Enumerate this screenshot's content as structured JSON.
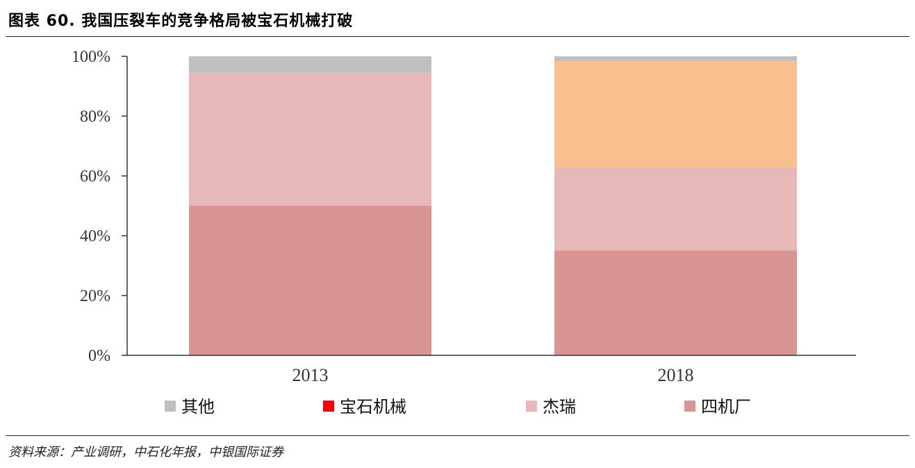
{
  "header": {
    "title": "图表 60. 我国压裂车的竞争格局被宝石机械打破"
  },
  "footer": {
    "source": "资料来源：产业调研，中石化年报，中银国际证券"
  },
  "chart_data": {
    "type": "bar",
    "stacked": true,
    "categories": [
      "2013",
      "2018"
    ],
    "y_ticks": [
      "0%",
      "20%",
      "40%",
      "60%",
      "80%",
      "100%"
    ],
    "ylim": [
      0,
      100
    ],
    "series": [
      {
        "name": "四机厂",
        "values": [
          50,
          35
        ],
        "color": "#d99494"
      },
      {
        "name": "杰瑞",
        "values": [
          44.5,
          28
        ],
        "color": "#e6b8b8"
      },
      {
        "name": "宝石机械",
        "values": [
          0,
          35.5
        ],
        "color": "#f9c08f",
        "legend_color": "#ff0000"
      },
      {
        "name": "其他",
        "values": [
          5.5,
          1.5
        ],
        "color": "#bfbfbf"
      }
    ],
    "legend_order": [
      "其他",
      "宝石机械",
      "杰瑞",
      "四机厂"
    ],
    "legend_position": "bottom"
  }
}
